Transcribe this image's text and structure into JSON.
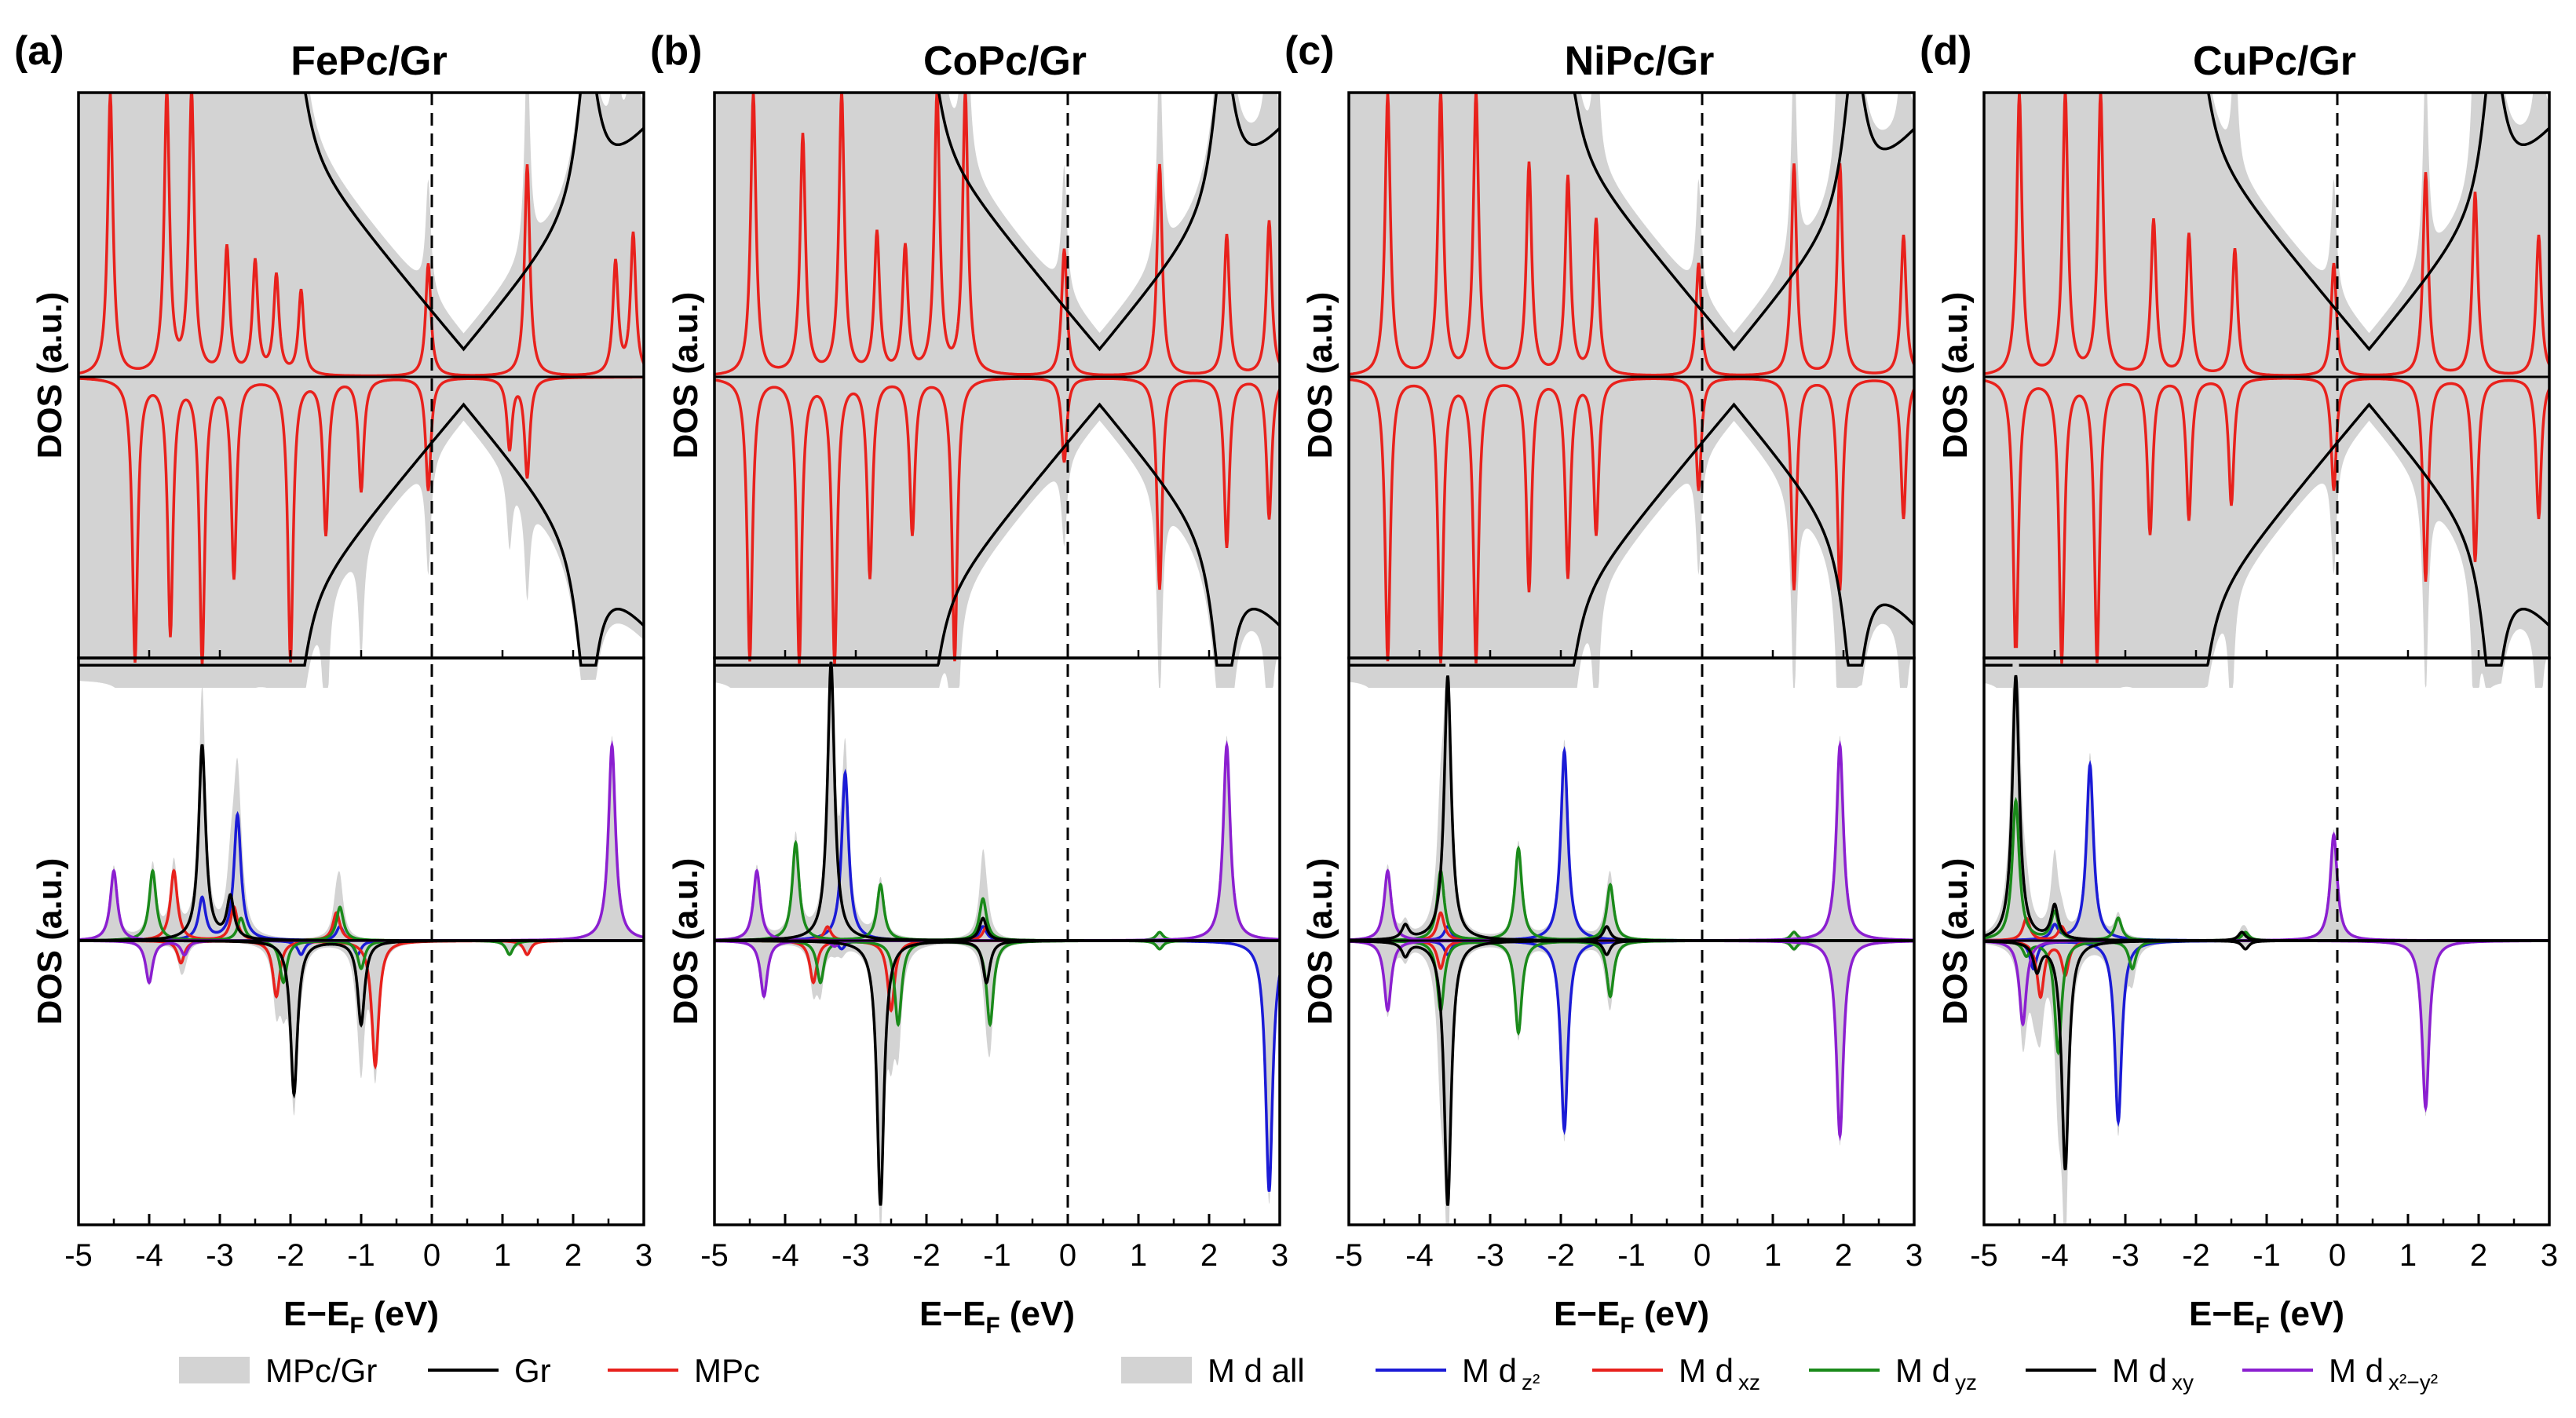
{
  "chart_data": {
    "type": "line",
    "legend_top": [
      {
        "label": "MPc/Gr",
        "color": "#d3d3d3",
        "style": "fill"
      },
      {
        "label": "Gr",
        "color": "#000000",
        "style": "line"
      },
      {
        "label": "MPc",
        "color": "#e8211c",
        "style": "line"
      }
    ],
    "legend_bottom": [
      {
        "label": "M d all",
        "color": "#d3d3d3",
        "style": "fill"
      },
      {
        "label": "M d",
        "sub": "z²",
        "color": "#1b1bd6",
        "style": "line"
      },
      {
        "label": "M d",
        "sub": "xz",
        "color": "#e8211c",
        "style": "line"
      },
      {
        "label": "M d",
        "sub": "yz",
        "color": "#1a8a1a",
        "style": "line"
      },
      {
        "label": "M d",
        "sub": "xy",
        "color": "#000000",
        "style": "line"
      },
      {
        "label": "M d",
        "sub": "x²−y²",
        "color": "#8b1fd0",
        "style": "line"
      }
    ],
    "x_ticks": [
      "-5",
      "-4",
      "-3",
      "-2",
      "-1",
      "0",
      "1",
      "2",
      "3"
    ],
    "xlim": [
      -5,
      3
    ],
    "fermi_level": 0,
    "panels": [
      {
        "label": "(a)",
        "title": "FePc/Gr",
        "xlabel": "E−E",
        "xlabel_sub": "F",
        "xlabel_unit": " (eV)",
        "ylabel_top": "DOS (a.u.)",
        "ylabel_bottom": "DOS (a.u.)",
        "dirac_point": 0.45,
        "gr_peaks": [
          -2.2,
          -1.9,
          2.2
        ],
        "mpc_up": [
          [
            -4.55,
            1.0
          ],
          [
            -3.75,
            1.0
          ],
          [
            -3.4,
            1.0
          ],
          [
            -2.9,
            0.45
          ],
          [
            -2.5,
            0.4
          ],
          [
            -2.2,
            0.35
          ],
          [
            -1.85,
            0.3
          ],
          [
            -0.05,
            0.4
          ],
          [
            1.35,
            0.75
          ],
          [
            2.6,
            0.4
          ],
          [
            2.85,
            0.5
          ]
        ],
        "mpc_dn": [
          [
            -4.2,
            1.0
          ],
          [
            -3.7,
            0.9
          ],
          [
            -3.25,
            1.0
          ],
          [
            -2.8,
            0.7
          ],
          [
            -2.0,
            1.0
          ],
          [
            -1.5,
            0.55
          ],
          [
            -1.0,
            0.4
          ],
          [
            -0.05,
            0.4
          ],
          [
            1.1,
            0.25
          ],
          [
            1.35,
            0.35
          ]
        ],
        "d_up": {
          "z2": [
            [
              -3.25,
              0.15
            ],
            [
              -2.75,
              0.45
            ],
            [
              -1.3,
              0.05
            ]
          ],
          "xz": [
            [
              -3.65,
              0.25
            ],
            [
              -2.8,
              0.12
            ],
            [
              -1.35,
              0.1
            ]
          ],
          "yz": [
            [
              -3.95,
              0.25
            ],
            [
              -2.7,
              0.08
            ],
            [
              -1.3,
              0.12
            ]
          ],
          "xy": [
            [
              -3.25,
              0.7
            ],
            [
              -2.85,
              0.15
            ]
          ],
          "x2y2": [
            [
              -4.5,
              0.25
            ],
            [
              2.55,
              0.7
            ]
          ]
        },
        "d_dn": {
          "z2": [
            [
              -1.85,
              0.05
            ],
            [
              -1.05,
              0.05
            ]
          ],
          "xz": [
            [
              -3.55,
              0.08
            ],
            [
              -2.2,
              0.2
            ],
            [
              -0.8,
              0.45
            ],
            [
              1.35,
              0.05
            ]
          ],
          "yz": [
            [
              -2.1,
              0.15
            ],
            [
              -1.0,
              0.1
            ],
            [
              1.1,
              0.05
            ]
          ],
          "xy": [
            [
              -1.95,
              0.55
            ],
            [
              -1.0,
              0.3
            ]
          ],
          "x2y2": [
            [
              -4.0,
              0.15
            ],
            [
              -3.5,
              0.05
            ]
          ]
        }
      },
      {
        "label": "(b)",
        "title": "CoPc/Gr",
        "xlabel": "E−E",
        "xlabel_sub": "F",
        "xlabel_unit": " (eV)",
        "ylabel_top": "DOS (a.u.)",
        "ylabel_bottom": "DOS (a.u.)",
        "dirac_point": 0.45,
        "gr_peaks": [
          -2.2,
          -1.95,
          2.2
        ],
        "mpc_up": [
          [
            -4.45,
            1.0
          ],
          [
            -3.75,
            0.85
          ],
          [
            -3.2,
            1.0
          ],
          [
            -2.7,
            0.5
          ],
          [
            -2.3,
            0.45
          ],
          [
            -1.85,
            1.0
          ],
          [
            -1.45,
            1.0
          ],
          [
            -0.05,
            0.45
          ],
          [
            1.3,
            0.75
          ],
          [
            2.25,
            0.5
          ],
          [
            2.85,
            0.55
          ]
        ],
        "mpc_dn": [
          [
            -4.5,
            1.0
          ],
          [
            -3.8,
            1.0
          ],
          [
            -3.3,
            1.0
          ],
          [
            -2.8,
            0.7
          ],
          [
            -2.2,
            0.55
          ],
          [
            -1.6,
            1.0
          ],
          [
            -0.05,
            0.3
          ],
          [
            1.3,
            0.75
          ],
          [
            2.25,
            0.6
          ],
          [
            2.85,
            0.5
          ]
        ],
        "d_up": {
          "z2": [
            [
              -3.15,
              0.6
            ],
            [
              -1.2,
              0.05
            ]
          ],
          "xz": [
            [
              -3.4,
              0.05
            ],
            [
              -1.15,
              0.05
            ]
          ],
          "yz": [
            [
              -3.85,
              0.35
            ],
            [
              -2.65,
              0.2
            ],
            [
              -1.2,
              0.15
            ],
            [
              1.3,
              0.03
            ]
          ],
          "xy": [
            [
              -3.35,
              1.0
            ],
            [
              -1.2,
              0.08
            ]
          ],
          "x2y2": [
            [
              -4.4,
              0.25
            ],
            [
              2.25,
              0.7
            ]
          ]
        },
        "d_dn": {
          "z2": [
            [
              -3.2,
              0.03
            ],
            [
              2.85,
              0.9
            ]
          ],
          "xz": [
            [
              -3.6,
              0.15
            ],
            [
              -2.5,
              0.25
            ]
          ],
          "yz": [
            [
              -3.5,
              0.15
            ],
            [
              -2.4,
              0.3
            ],
            [
              -1.1,
              0.3
            ],
            [
              1.3,
              0.03
            ]
          ],
          "xy": [
            [
              -2.65,
              0.95
            ],
            [
              -1.15,
              0.15
            ]
          ],
          "x2y2": [
            [
              -4.3,
              0.2
            ],
            [
              -3.3,
              0.02
            ]
          ]
        }
      },
      {
        "label": "(c)",
        "title": "NiPc/Gr",
        "xlabel": "E−E",
        "xlabel_sub": "F",
        "xlabel_unit": " (eV)",
        "ylabel_top": "DOS (a.u.)",
        "ylabel_bottom": "DOS (a.u.)",
        "dirac_point": 0.45,
        "gr_peaks": [
          -2.4,
          -1.9,
          2.15
        ],
        "mpc_up": [
          [
            -4.45,
            1.0
          ],
          [
            -3.7,
            1.0
          ],
          [
            -3.2,
            1.0
          ],
          [
            -2.45,
            0.75
          ],
          [
            -1.9,
            0.7
          ],
          [
            -1.5,
            0.55
          ],
          [
            -0.05,
            0.4
          ],
          [
            1.3,
            0.75
          ],
          [
            1.95,
            0.75
          ],
          [
            2.85,
            0.5
          ]
        ],
        "mpc_dn": [
          [
            -4.45,
            1.0
          ],
          [
            -3.7,
            1.0
          ],
          [
            -3.2,
            1.0
          ],
          [
            -2.45,
            0.75
          ],
          [
            -1.9,
            0.7
          ],
          [
            -1.5,
            0.55
          ],
          [
            -0.05,
            0.4
          ],
          [
            1.3,
            0.75
          ],
          [
            1.95,
            0.75
          ],
          [
            2.85,
            0.5
          ]
        ],
        "d_up": {
          "z2": [
            [
              -1.95,
              0.68
            ],
            [
              -3.6,
              0.05
            ]
          ],
          "xz": [
            [
              -3.7,
              0.1
            ]
          ],
          "yz": [
            [
              -3.7,
              0.25
            ],
            [
              -2.6,
              0.33
            ],
            [
              -1.3,
              0.2
            ],
            [
              1.3,
              0.03
            ]
          ],
          "xy": [
            [
              -3.6,
              0.95
            ],
            [
              -4.2,
              0.05
            ],
            [
              -1.35,
              0.05
            ]
          ],
          "x2y2": [
            [
              -4.45,
              0.25
            ],
            [
              1.95,
              0.7
            ]
          ]
        },
        "d_dn": {
          "z2": [
            [
              -1.95,
              0.68
            ],
            [
              -3.6,
              0.05
            ]
          ],
          "xz": [
            [
              -3.7,
              0.1
            ]
          ],
          "yz": [
            [
              -3.7,
              0.25
            ],
            [
              -2.6,
              0.33
            ],
            [
              -1.3,
              0.2
            ],
            [
              1.3,
              0.03
            ]
          ],
          "xy": [
            [
              -3.6,
              0.95
            ],
            [
              -4.2,
              0.05
            ],
            [
              -1.35,
              0.05
            ]
          ],
          "x2y2": [
            [
              -4.45,
              0.25
            ],
            [
              1.95,
              0.7
            ]
          ]
        }
      },
      {
        "label": "(d)",
        "title": "CuPc/Gr",
        "xlabel": "E−E",
        "xlabel_sub": "F",
        "xlabel_unit": " (eV)",
        "ylabel_top": "DOS (a.u.)",
        "ylabel_bottom": "DOS (a.u.)",
        "dirac_point": 0.45,
        "gr_peaks": [
          -2.2,
          -1.95,
          2.2
        ],
        "mpc_up": [
          [
            -4.5,
            1.0
          ],
          [
            -3.85,
            1.0
          ],
          [
            -3.35,
            1.0
          ],
          [
            -2.6,
            0.55
          ],
          [
            -2.1,
            0.5
          ],
          [
            -1.45,
            0.45
          ],
          [
            -0.05,
            0.4
          ],
          [
            1.25,
            0.72
          ],
          [
            1.95,
            0.65
          ],
          [
            2.85,
            0.5
          ]
        ],
        "mpc_dn": [
          [
            -4.55,
            1.0
          ],
          [
            -3.9,
            1.0
          ],
          [
            -3.4,
            1.0
          ],
          [
            -2.65,
            0.55
          ],
          [
            -2.1,
            0.5
          ],
          [
            -1.5,
            0.45
          ],
          [
            -0.05,
            0.4
          ],
          [
            1.25,
            0.72
          ],
          [
            1.95,
            0.65
          ],
          [
            2.85,
            0.5
          ]
        ],
        "d_up": {
          "z2": [
            [
              -3.5,
              0.63
            ],
            [
              -4.0,
              0.05
            ]
          ],
          "xz": [
            [
              -4.4,
              0.08
            ],
            [
              -3.9,
              0.05
            ]
          ],
          "yz": [
            [
              -4.55,
              0.5
            ],
            [
              -4.0,
              0.1
            ],
            [
              -3.1,
              0.08
            ],
            [
              -1.3,
              0.03
            ]
          ],
          "xy": [
            [
              -4.55,
              0.95
            ],
            [
              -4.0,
              0.12
            ],
            [
              -1.35,
              0.03
            ]
          ],
          "x2y2": [
            [
              -0.05,
              0.38
            ]
          ]
        },
        "d_dn": {
          "z2": [
            [
              -3.1,
              0.65
            ],
            [
              -4.3,
              0.1
            ]
          ],
          "xz": [
            [
              -4.2,
              0.2
            ],
            [
              -3.85,
              0.12
            ]
          ],
          "yz": [
            [
              -3.95,
              0.4
            ],
            [
              -2.9,
              0.1
            ],
            [
              -4.4,
              0.05
            ]
          ],
          "xy": [
            [
              -3.85,
              0.82
            ],
            [
              -4.25,
              0.1
            ],
            [
              -1.3,
              0.03
            ]
          ],
          "x2y2": [
            [
              -4.45,
              0.3
            ],
            [
              1.25,
              0.6
            ]
          ]
        }
      }
    ]
  }
}
